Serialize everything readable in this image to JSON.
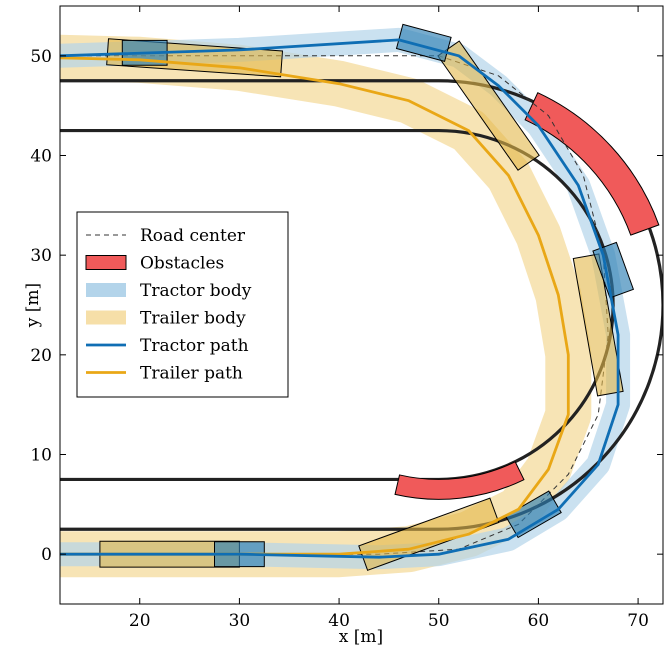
{
  "chart_data": {
    "type": "line",
    "xlabel": "x [m]",
    "ylabel": "y [m]",
    "xlim": [
      12,
      72.5
    ],
    "ylim": [
      -5,
      55
    ],
    "xticks": [
      20,
      30,
      40,
      50,
      60,
      70
    ],
    "yticks": [
      0,
      10,
      20,
      30,
      40,
      50
    ],
    "grid": false,
    "legend_position": "middle-left",
    "legend": [
      {
        "key": "road",
        "label": "Road center",
        "style": "dashed",
        "color": "#333333"
      },
      {
        "key": "obstacles",
        "label": "Obstacles",
        "style": "patch",
        "color": "#f05a5a"
      },
      {
        "key": "tractor_body",
        "label": "Tractor body",
        "style": "patch",
        "color": "#b3d4ea"
      },
      {
        "key": "trailer_body",
        "label": "Trailer body",
        "style": "patch",
        "color": "#f6dfa8"
      },
      {
        "key": "tractor_path",
        "label": "Tractor path",
        "style": "line",
        "color": "#0f6eb4"
      },
      {
        "key": "trailer_path",
        "label": "Trailer path",
        "style": "line",
        "color": "#e9a716"
      }
    ],
    "track": {
      "center": [
        50,
        25
      ],
      "centerline_radius": 20,
      "outer_radius": 22.5,
      "inner_radius": 17.5,
      "color": "#222222"
    },
    "road_center": [
      [
        12,
        50
      ],
      [
        50,
        50
      ],
      [
        56,
        48
      ],
      [
        61,
        44
      ],
      [
        64.5,
        38
      ],
      [
        66.5,
        30
      ],
      [
        67,
        22
      ],
      [
        66,
        14
      ],
      [
        63,
        8
      ],
      [
        58,
        3
      ],
      [
        52,
        0.5
      ],
      [
        44,
        0
      ],
      [
        12,
        0
      ]
    ],
    "tractor_path": [
      [
        12,
        50
      ],
      [
        30,
        50.6
      ],
      [
        46,
        51.6
      ],
      [
        52,
        50
      ],
      [
        56,
        47
      ],
      [
        60,
        43
      ],
      [
        64,
        37
      ],
      [
        66.5,
        30
      ],
      [
        68,
        22
      ],
      [
        68,
        15
      ],
      [
        66,
        9
      ],
      [
        62,
        4.5
      ],
      [
        57,
        1.5
      ],
      [
        50,
        0
      ],
      [
        44,
        -0.3
      ],
      [
        30,
        0
      ],
      [
        12,
        0
      ]
    ],
    "trailer_path": [
      [
        12,
        49.8
      ],
      [
        20,
        49.6
      ],
      [
        30,
        48.8
      ],
      [
        40,
        47.2
      ],
      [
        47,
        45.5
      ],
      [
        53,
        42.5
      ],
      [
        57,
        38
      ],
      [
        60,
        32
      ],
      [
        62,
        26
      ],
      [
        63,
        20
      ],
      [
        63,
        14
      ],
      [
        61,
        8.5
      ],
      [
        58,
        4.5
      ],
      [
        53,
        2
      ],
      [
        47,
        0.5
      ],
      [
        40,
        0
      ],
      [
        30,
        0
      ],
      [
        12,
        0
      ]
    ],
    "obstacles": [
      {
        "r_inner": 20.5,
        "r_outer": 23.5,
        "theta_start": 20,
        "theta_end": 65
      },
      {
        "r_inner": 17.5,
        "r_outer": 19.5,
        "theta_start": 257,
        "theta_end": 296
      }
    ],
    "tractor_boxes": [
      {
        "x": 20.5,
        "y": 50.3,
        "angle": 0,
        "length": 4.5,
        "width": 2.5
      },
      {
        "x": 48.5,
        "y": 51.3,
        "angle": -15,
        "length": 5,
        "width": 2.5
      },
      {
        "x": 67.5,
        "y": 28.5,
        "angle": -70,
        "length": 5,
        "width": 2.5
      },
      {
        "x": 59.5,
        "y": 4,
        "angle": 30,
        "length": 5,
        "width": 2.5
      },
      {
        "x": 30,
        "y": 0,
        "angle": 0,
        "length": 5,
        "width": 2.5
      }
    ],
    "trailer_boxes": [
      {
        "x": 25.5,
        "y": 49.8,
        "angle": -4,
        "length": 17.5,
        "width": 2.6
      },
      {
        "x": 55,
        "y": 45,
        "angle": -55,
        "length": 14,
        "width": 2.6
      },
      {
        "x": 66,
        "y": 23,
        "angle": -80,
        "length": 14,
        "width": 2.6
      },
      {
        "x": 49,
        "y": 2,
        "angle": 20,
        "length": 14,
        "width": 2.6
      },
      {
        "x": 23,
        "y": 0,
        "angle": 0,
        "length": 14,
        "width": 2.6
      }
    ]
  }
}
